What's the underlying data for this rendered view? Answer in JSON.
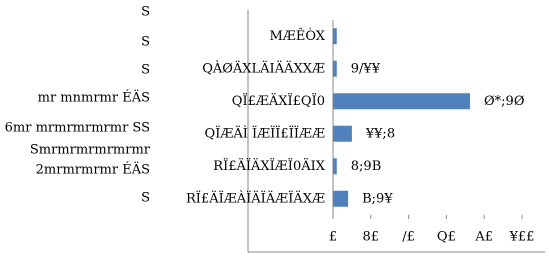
{
  "chart_data": {
    "type": "hbar",
    "categories": [
      "MÆÊÒX",
      "QÀØÄXLÄIÄÄXXÆ",
      "QÏ£ÆÄXÏ£QÏ0",
      "QÏÆÄÌ ÏÆÏÏ£ÏÏÆÆ",
      "RÏ£ÄÏÄXÏÆÏ0ÄIX",
      "RÏ£ÄÏÆÀÏÄÏÄÆÏÄXÆ"
    ],
    "values": [
      2,
      2,
      72.5,
      10,
      2,
      8
    ],
    "value_labels": [
      null,
      "9/¥¥",
      "Ø*;9Ø",
      "¥¥;8",
      "8;9B",
      "B;9¥"
    ],
    "color": "#4f81bd",
    "xlim": [
      0,
      100
    ],
    "xticks": [
      {
        "value": 0,
        "label": "£"
      },
      {
        "value": 20,
        "label": "8£"
      },
      {
        "value": 40,
        "label": "/£"
      },
      {
        "value": 60,
        "label": "Q£"
      },
      {
        "value": 80,
        "label": "A£"
      },
      {
        "value": 100,
        "label": "¥££"
      }
    ],
    "group_labels": [
      "S",
      "S",
      "S",
      "mr mnmrmr ÉÄS",
      "6mr mrmrmrmrmr SS",
      "Smrmrmrmrmrmr",
      "2mrmrmrmr ÉÄS",
      "S"
    ]
  }
}
